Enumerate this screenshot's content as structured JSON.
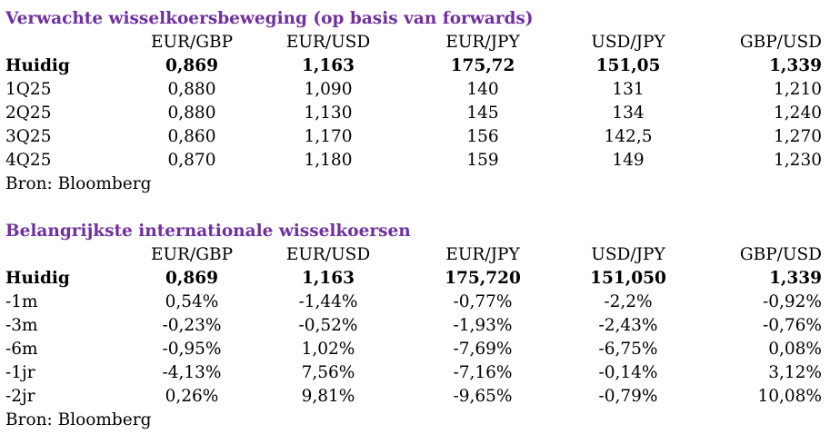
{
  "section1": {
    "title": "Verwachte wisselkoersbeweging (op basis van forwards)",
    "headers": [
      "EUR/GBP",
      "EUR/USD",
      "EUR/JPY",
      "USD/JPY",
      "GBP/USD"
    ],
    "rows": [
      {
        "label": "Huidig",
        "values": [
          "0,869",
          "1,163",
          "175,72",
          "151,05",
          "1,339"
        ]
      },
      {
        "label": "1Q25",
        "values": [
          "0,880",
          "1,090",
          "140",
          "131",
          "1,210"
        ]
      },
      {
        "label": "2Q25",
        "values": [
          "0,880",
          "1,130",
          "145",
          "134",
          "1,240"
        ]
      },
      {
        "label": "3Q25",
        "values": [
          "0,860",
          "1,170",
          "156",
          "142,5",
          "1,270"
        ]
      },
      {
        "label": "4Q25",
        "values": [
          "0,870",
          "1,180",
          "159",
          "149",
          "1,230"
        ]
      }
    ],
    "source": "Bron: Bloomberg"
  },
  "section2": {
    "title": "Belangrijkste internationale wisselkoersen",
    "headers": [
      "EUR/GBP",
      "EUR/USD",
      "EUR/JPY",
      "USD/JPY",
      "GBP/USD"
    ],
    "rows": [
      {
        "label": "Huidig",
        "values": [
          "0,869",
          "1,163",
          "175,720",
          "151,050",
          "1,339"
        ]
      },
      {
        "label": "-1m",
        "values": [
          "0,54%",
          "-1,44%",
          "-0,77%",
          "-2,2%",
          "-0,92%"
        ]
      },
      {
        "label": "-3m",
        "values": [
          "-0,23%",
          "-0,52%",
          "-1,93%",
          "-2,43%",
          "-0,76%"
        ]
      },
      {
        "label": "-6m",
        "values": [
          "-0,95%",
          "1,02%",
          "-7,69%",
          "-6,75%",
          "0,08%"
        ]
      },
      {
        "label": "-1jr",
        "values": [
          "-4,13%",
          "7,56%",
          "-7,16%",
          "-0,14%",
          "3,12%"
        ]
      },
      {
        "label": "-2jr",
        "values": [
          "0,26%",
          "9,81%",
          "-9,65%",
          "-0,79%",
          "10,08%"
        ]
      }
    ],
    "source": "Bron: Bloomberg"
  },
  "colors": {
    "title": "#7030a0",
    "text": "#000000",
    "background": "#ffffff"
  }
}
